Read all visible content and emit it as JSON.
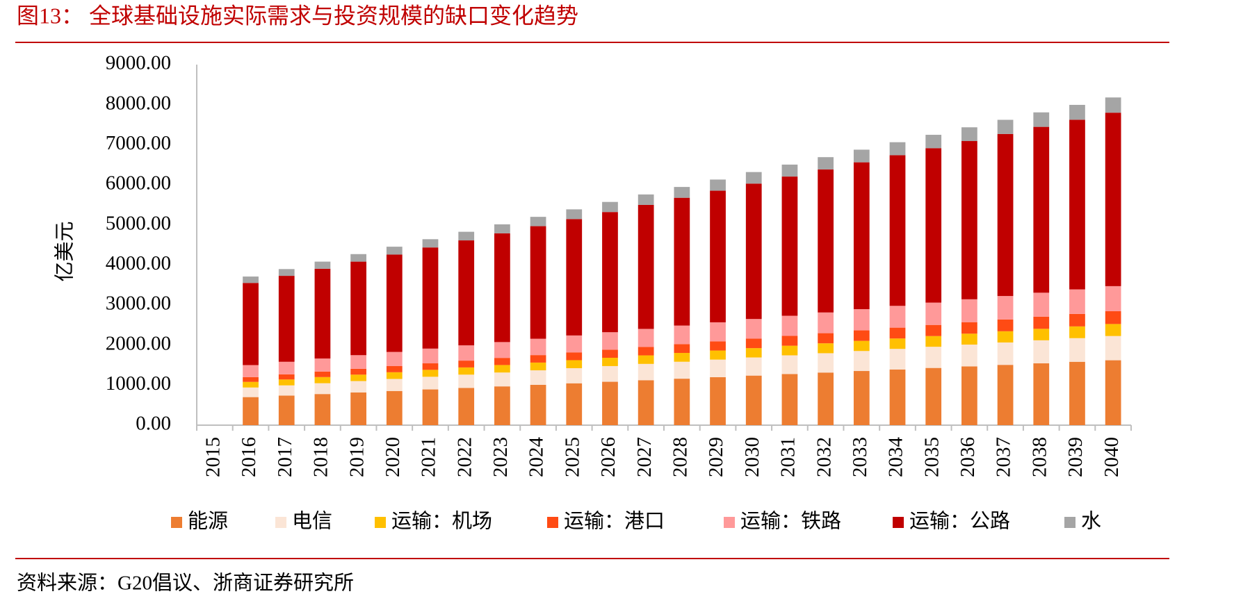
{
  "chart_data": {
    "type": "stacked_bar",
    "title": "图13：  全球基础设施实际需求与投资规模的缺口变化趋势",
    "y_label": "亿美元",
    "source": "资料来源：G20倡议、浙商证券研究所",
    "categories": [
      "2015",
      "2016",
      "2017",
      "2018",
      "2019",
      "2020",
      "2021",
      "2022",
      "2023",
      "2024",
      "2025",
      "2026",
      "2027",
      "2028",
      "2029",
      "2030",
      "2031",
      "2032",
      "2033",
      "2034",
      "2035",
      "2036",
      "2037",
      "2038",
      "2039",
      "2040"
    ],
    "ylim": [
      0,
      9000
    ],
    "yticks": [
      {
        "value": 0,
        "label": "0.00"
      },
      {
        "value": 1000,
        "label": "1000.00"
      },
      {
        "value": 2000,
        "label": "2000.00"
      },
      {
        "value": 3000,
        "label": "3000.00"
      },
      {
        "value": 4000,
        "label": "4000.00"
      },
      {
        "value": 5000,
        "label": "5000.00"
      },
      {
        "value": 6000,
        "label": "6000.00"
      },
      {
        "value": 7000,
        "label": "7000.00"
      },
      {
        "value": 8000,
        "label": "8000.00"
      },
      {
        "value": 9000,
        "label": "9000.00"
      }
    ],
    "series": [
      {
        "name": "能源",
        "color": "#ed7d31",
        "values": [
          null,
          700,
          738,
          777,
          815,
          853,
          892,
          930,
          968,
          1007,
          1045,
          1083,
          1122,
          1160,
          1198,
          1237,
          1275,
          1313,
          1352,
          1390,
          1428,
          1467,
          1505,
          1543,
          1582,
          1620
        ]
      },
      {
        "name": "电信",
        "color": "#fbe5d6",
        "values": [
          null,
          240,
          255,
          270,
          286,
          301,
          316,
          331,
          346,
          362,
          377,
          392,
          407,
          423,
          438,
          453,
          468,
          483,
          499,
          514,
          529,
          544,
          559,
          575,
          590,
          605
        ]
      },
      {
        "name": "运输：机场",
        "color": "#ffc000",
        "values": [
          null,
          140,
          147,
          153,
          160,
          167,
          173,
          180,
          187,
          193,
          200,
          207,
          213,
          220,
          227,
          233,
          240,
          247,
          253,
          260,
          267,
          273,
          280,
          287,
          293,
          300
        ]
      },
      {
        "name": "运输：港口",
        "color": "#ff4b14",
        "values": [
          null,
          120,
          128,
          137,
          145,
          153,
          162,
          170,
          178,
          187,
          195,
          203,
          212,
          220,
          228,
          237,
          245,
          253,
          262,
          270,
          278,
          287,
          295,
          303,
          312,
          320
        ]
      },
      {
        "name": "运输：铁路",
        "color": "#ff9999",
        "values": [
          null,
          300,
          314,
          327,
          341,
          354,
          368,
          381,
          395,
          408,
          422,
          435,
          449,
          463,
          476,
          490,
          503,
          517,
          530,
          544,
          557,
          571,
          585,
          598,
          612,
          625
        ]
      },
      {
        "name": "运输：公路",
        "color": "#c00000",
        "values": [
          null,
          2050,
          2145,
          2240,
          2335,
          2430,
          2525,
          2620,
          2715,
          2810,
          2905,
          3000,
          3095,
          3190,
          3285,
          3380,
          3475,
          3570,
          3665,
          3760,
          3855,
          3950,
          4045,
          4140,
          4235,
          4330
        ]
      },
      {
        "name": "水",
        "color": "#a5a5a5",
        "values": [
          null,
          160,
          169,
          178,
          188,
          197,
          206,
          215,
          224,
          233,
          243,
          252,
          261,
          270,
          279,
          288,
          298,
          307,
          316,
          325,
          334,
          343,
          353,
          362,
          371,
          380
        ]
      }
    ]
  }
}
